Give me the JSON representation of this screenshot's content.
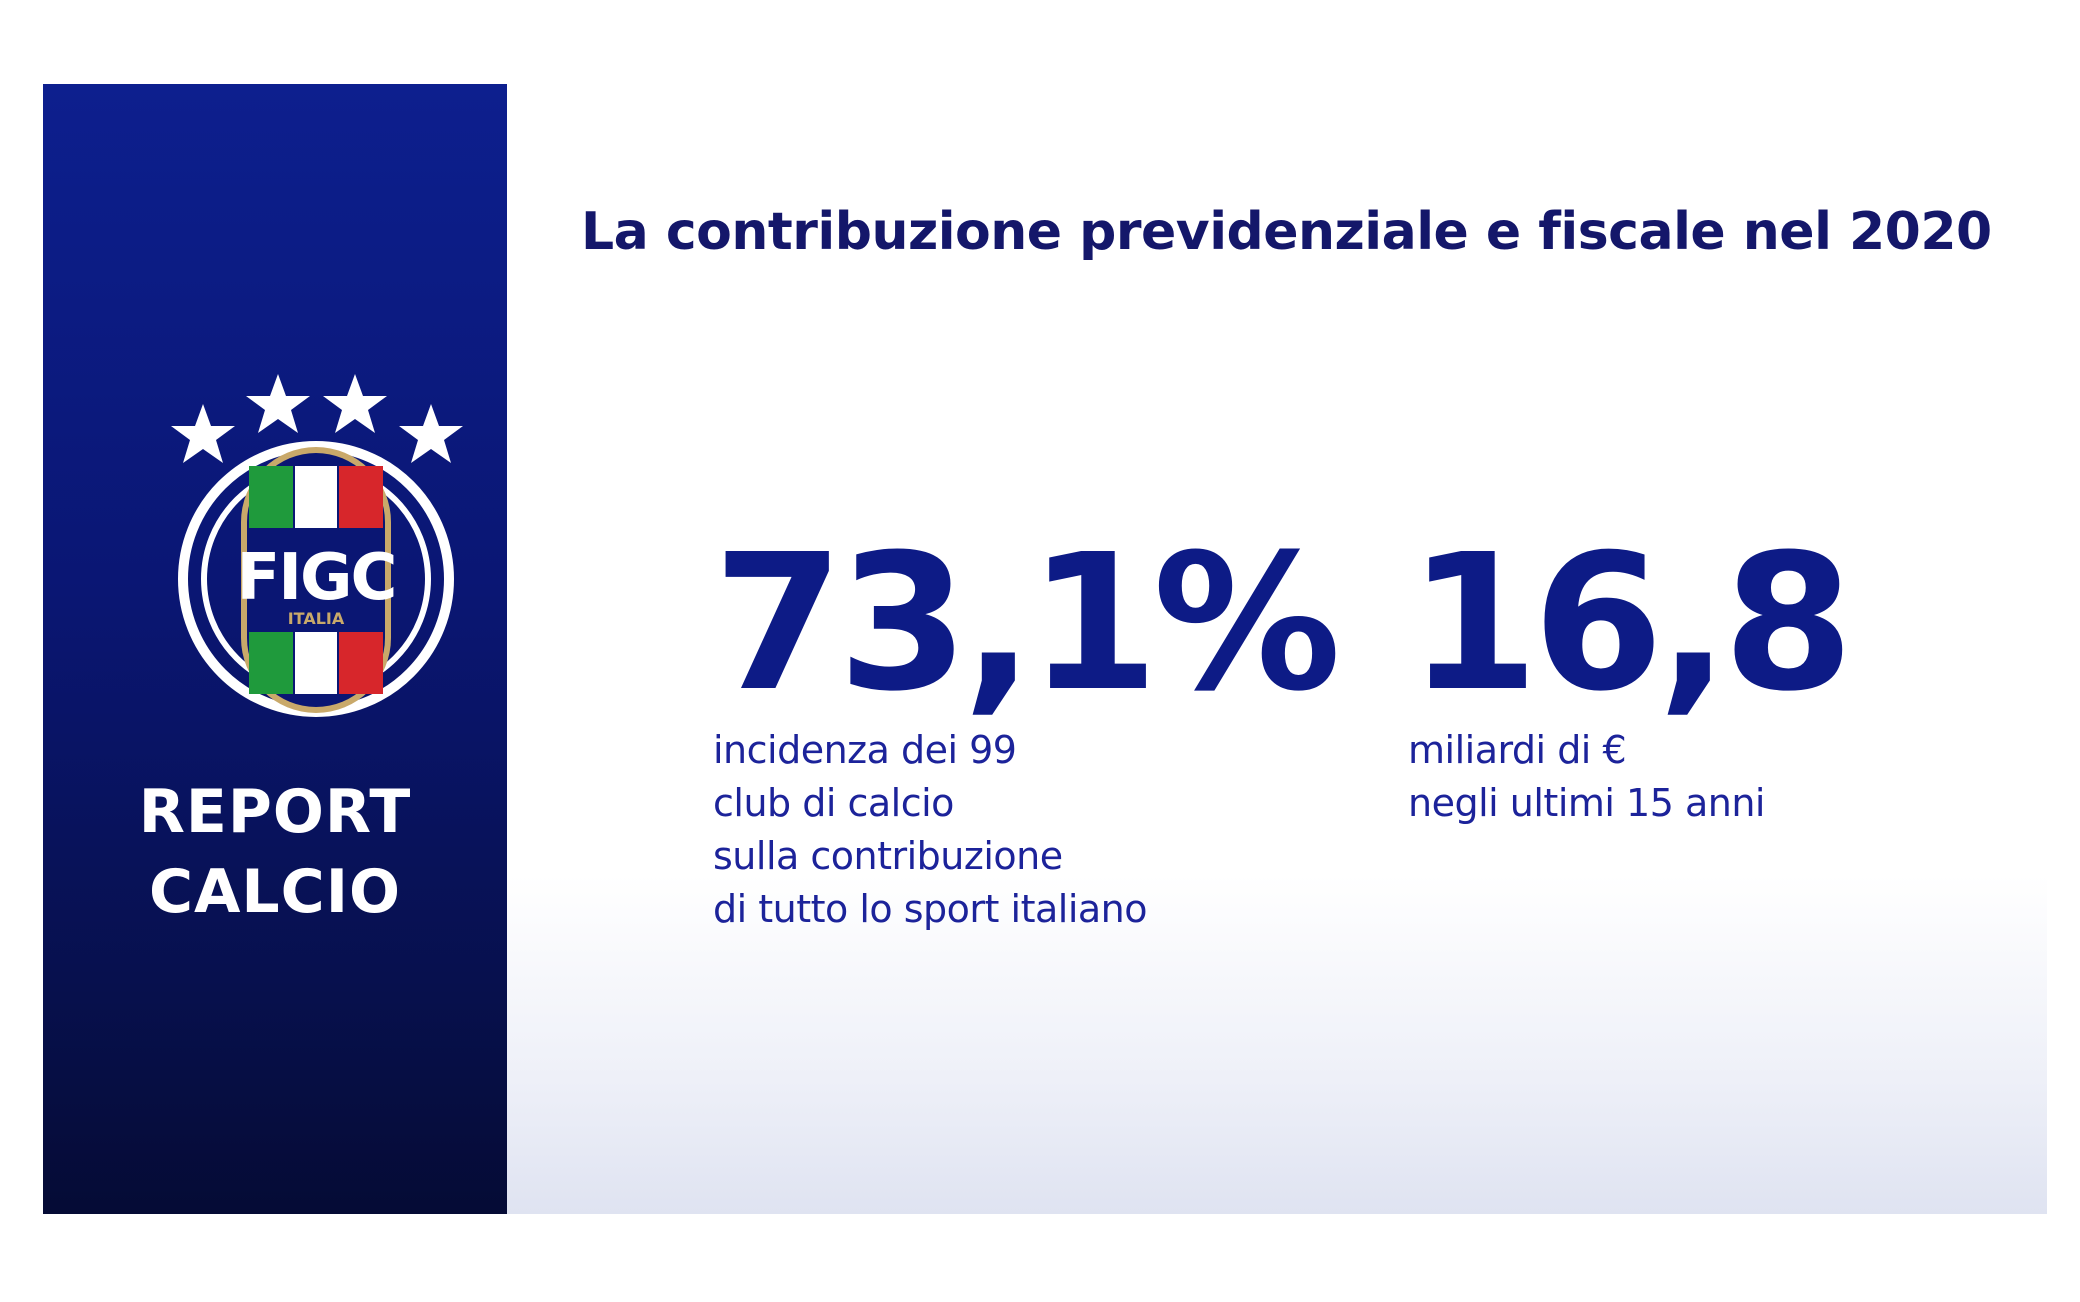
{
  "sidebar": {
    "logo": {
      "text": "FIGC",
      "subtext": "ITALIA",
      "star_count": 4,
      "colors": {
        "green": "#1f9a3c",
        "white": "#ffffff",
        "red": "#d7262b",
        "gold": "#c9a96a"
      }
    },
    "title_line1": "REPORT",
    "title_line2": "CALCIO"
  },
  "headline": "La contribuzione previdenziale e fiscale nel 2020",
  "stats": [
    {
      "value": "73,1%",
      "lines": [
        "incidenza dei 99",
        "club di calcio",
        "sulla contribuzione",
        "di tutto lo sport italiano"
      ]
    },
    {
      "value": "16,8",
      "lines": [
        "miliardi di €",
        "negli ultimi 15 anni"
      ]
    }
  ],
  "colors": {
    "navy": "#0a1673",
    "text_navy": "#14176a",
    "accent_blue": "#0d1b86"
  }
}
